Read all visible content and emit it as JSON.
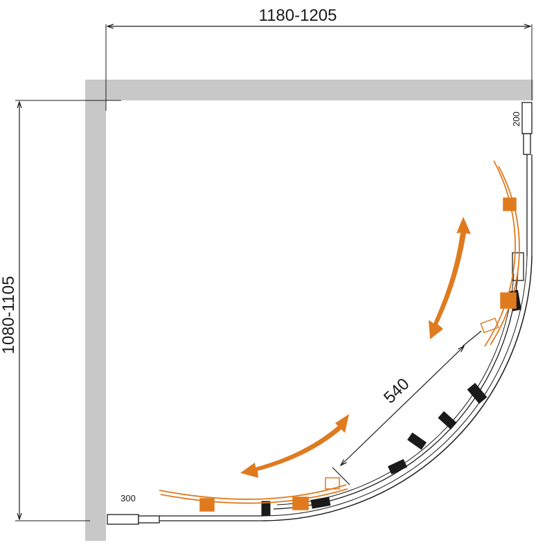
{
  "drawing": {
    "width_dimension": "1180-1205",
    "height_dimension": "1080-1105",
    "door_dimension": "540",
    "side_offset_top": "200",
    "side_offset_bottom": "300"
  },
  "colors": {
    "wall": "#c8c8c8",
    "line": "#1a1a1a",
    "accent": "#e07a1f"
  }
}
